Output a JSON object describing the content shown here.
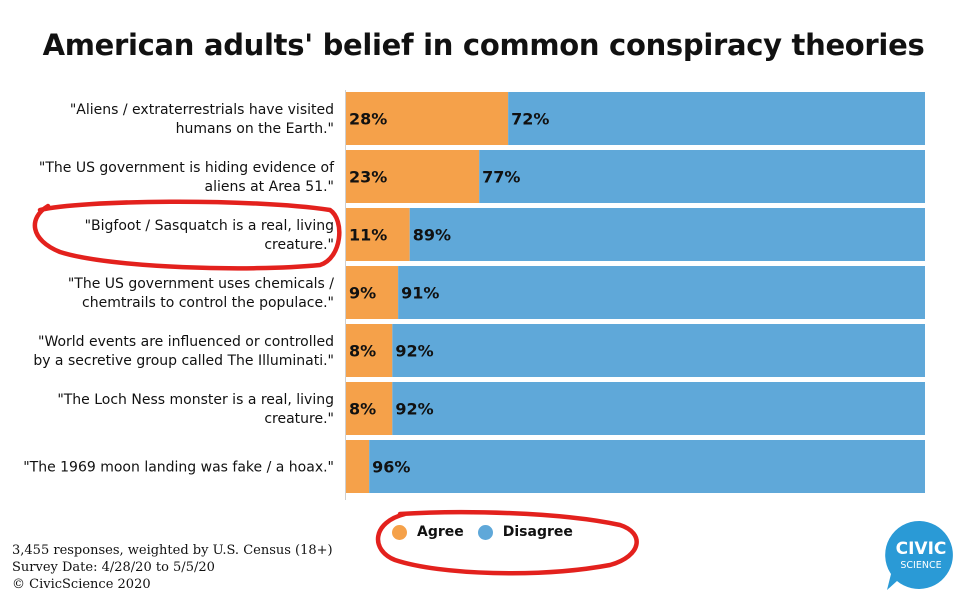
{
  "title": "American adults' belief in common conspiracy theories",
  "chart_data": {
    "type": "bar",
    "orientation": "horizontal",
    "stacked": true,
    "percent": true,
    "categories": [
      [
        "\"Aliens / extraterrestrials have visited",
        "humans on the Earth.\""
      ],
      [
        "\"The US government is hiding evidence of",
        "aliens at Area 51.\""
      ],
      [
        "\"Bigfoot / Sasquatch is a real, living",
        "creature.\""
      ],
      [
        "\"The US government uses chemicals /",
        "chemtrails to control the populace.\""
      ],
      [
        "\"World events are influenced or controlled",
        "by a secretive group called The Illuminati.\""
      ],
      [
        "\"The Loch Ness monster is a real, living",
        "creature.\""
      ],
      [
        "\"The 1969 moon landing was fake / a hoax.\""
      ]
    ],
    "series": [
      {
        "name": "Agree",
        "color": "#f5a14a",
        "values": [
          28,
          23,
          11,
          9,
          8,
          8,
          4
        ],
        "labels": [
          "28%",
          "23%",
          "11%",
          "9%",
          "8%",
          "8%",
          ""
        ]
      },
      {
        "name": "Disagree",
        "color": "#5fa8d9",
        "values": [
          72,
          77,
          89,
          91,
          92,
          92,
          96
        ],
        "labels": [
          "72%",
          "77%",
          "89%",
          "91%",
          "92%",
          "92%",
          "96%"
        ]
      }
    ],
    "xlim": [
      0,
      100
    ],
    "legend": "bottom-center",
    "grid": false
  },
  "legend": {
    "agree": "Agree",
    "disagree": "Disagree"
  },
  "footer": {
    "line1": "3,455 responses, weighted by U.S. Census (18+)",
    "line2": "Survey Date: 4/28/20 to 5/5/20",
    "line3": "© CivicScience 2020"
  },
  "logo": {
    "line1": "CIVIC",
    "line2": "SCIENCE",
    "color": "#2a9ad6"
  },
  "annotation_color": "#e3211d"
}
